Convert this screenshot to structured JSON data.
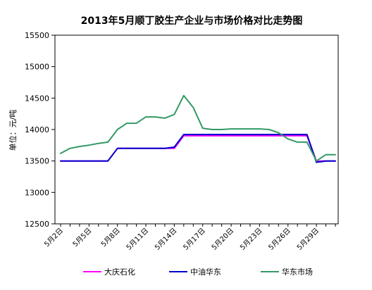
{
  "chart_data": {
    "type": "line",
    "title": "2013年5月顺丁胶生产企业与市场价格对比走势图",
    "ylabel": "单位：元/吨",
    "xlabel": "",
    "ylim": [
      12500,
      15500
    ],
    "yticks": [
      12500,
      13000,
      13500,
      14000,
      14500,
      15000,
      15500
    ],
    "x_dates": [
      "5月2日",
      "5月3日",
      "5月4日",
      "5月5日",
      "5月6日",
      "5月7日",
      "5月8日",
      "5月9日",
      "5月10日",
      "5月11日",
      "5月12日",
      "5月13日",
      "5月14日",
      "5月15日",
      "5月16日",
      "5月17日",
      "5月18日",
      "5月19日",
      "5月20日",
      "5月21日",
      "5月22日",
      "5月23日",
      "5月24日",
      "5月25日",
      "5月26日",
      "5月27日",
      "5月28日",
      "5月29日",
      "5月30日",
      "5月31日"
    ],
    "xtick_labels": [
      "5月2日",
      "5月5日",
      "5月8日",
      "5月11日",
      "5月14日",
      "5月17日",
      "5月20日",
      "5月23日",
      "5月26日",
      "5月29日"
    ],
    "xtick_index": [
      0,
      3,
      6,
      9,
      12,
      15,
      18,
      21,
      24,
      27
    ],
    "grid": false,
    "legend_position": "bottom",
    "series": [
      {
        "name": "大庆石化",
        "color": "#ff00ff",
        "values": [
          13500,
          13500,
          13500,
          13500,
          13500,
          13500,
          13700,
          13700,
          13700,
          13700,
          13700,
          13700,
          13700,
          13900,
          13900,
          13900,
          13900,
          13900,
          13900,
          13900,
          13900,
          13900,
          13900,
          13900,
          13900,
          13900,
          13900,
          13500,
          13500,
          13500
        ]
      },
      {
        "name": "中油华东",
        "color": "#0000cc",
        "values": [
          13500,
          13500,
          13500,
          13500,
          13500,
          13500,
          13700,
          13700,
          13700,
          13700,
          13700,
          13700,
          13720,
          13920,
          13920,
          13920,
          13920,
          13920,
          13920,
          13920,
          13920,
          13920,
          13920,
          13920,
          13920,
          13920,
          13920,
          13480,
          13500,
          13500
        ]
      },
      {
        "name": "华东市场",
        "color": "#339966",
        "values": [
          13620,
          13700,
          13730,
          13750,
          13780,
          13800,
          14000,
          14100,
          14100,
          14200,
          14200,
          14180,
          14240,
          14540,
          14350,
          14020,
          14000,
          14000,
          14010,
          14010,
          14010,
          14010,
          14000,
          13950,
          13850,
          13800,
          13800,
          13500,
          13600,
          13600
        ]
      }
    ]
  }
}
